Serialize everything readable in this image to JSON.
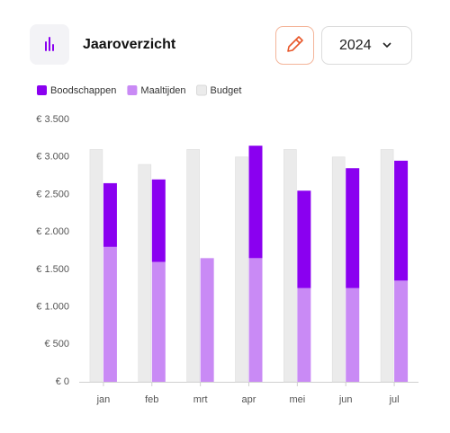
{
  "header": {
    "title": "Jaaroverzicht",
    "year": "2024"
  },
  "chart_data": {
    "type": "bar",
    "categories": [
      "jan",
      "feb",
      "mrt",
      "apr",
      "mei",
      "jun",
      "jul"
    ],
    "series": [
      {
        "name": "Boodschappen",
        "color": "#8a00f0",
        "stacked": true,
        "values": [
          850,
          1100,
          0,
          1500,
          1300,
          1600,
          1600
        ]
      },
      {
        "name": "Maaltijden",
        "color": "#c98af5",
        "stacked": true,
        "values": [
          1800,
          1600,
          1650,
          1650,
          1250,
          1250,
          1350
        ]
      },
      {
        "name": "Budget",
        "color": "#ebebeb",
        "stacked": false,
        "values": [
          3100,
          2900,
          3100,
          3000,
          3100,
          3000,
          3100
        ]
      }
    ],
    "ylim": [
      0,
      3500
    ],
    "yticks": [
      {
        "value": 0,
        "label": "€ 0"
      },
      {
        "value": 500,
        "label": "€ 500"
      },
      {
        "value": 1000,
        "label": "€ 1.000"
      },
      {
        "value": 1500,
        "label": "€ 1.500"
      },
      {
        "value": 2000,
        "label": "€ 2.000"
      },
      {
        "value": 2500,
        "label": "€ 2.500"
      },
      {
        "value": 3000,
        "label": "€ 3.000"
      },
      {
        "value": 3500,
        "label": "€ 3.500"
      }
    ],
    "grid": false
  }
}
